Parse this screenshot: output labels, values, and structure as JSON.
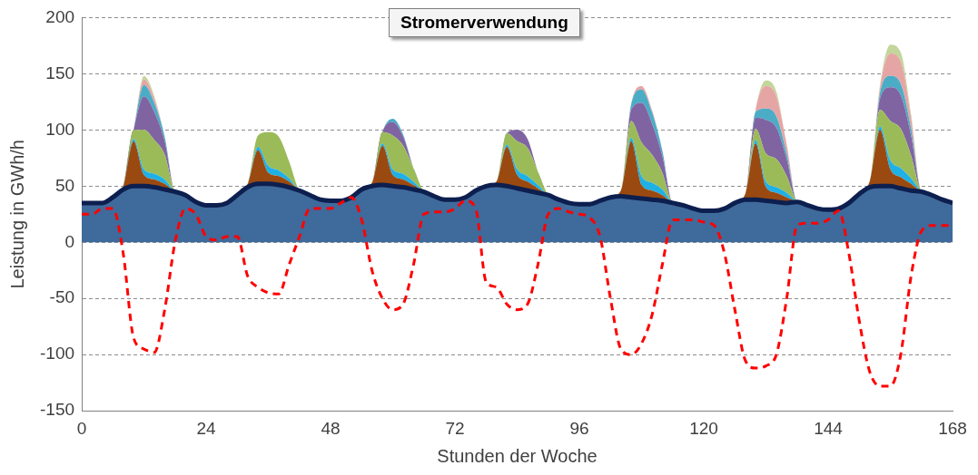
{
  "chart_data": {
    "type": "area",
    "title": "Stromerverwendung",
    "x_label": "Stunden der Woche",
    "y_label": "Leistung in GWh/h",
    "xlim": [
      0,
      168
    ],
    "xticks": [
      0,
      24,
      48,
      72,
      96,
      120,
      144,
      168
    ],
    "ylim": [
      -150,
      200
    ],
    "yticks": [
      -150,
      -100,
      -50,
      0,
      50,
      100,
      150,
      200
    ],
    "grid": true,
    "stacked": true,
    "x": [
      0,
      2,
      4,
      6,
      8,
      10,
      12,
      14,
      16,
      18,
      20,
      22,
      24,
      26,
      28,
      30,
      32,
      34,
      36,
      38,
      40,
      42,
      44,
      46,
      48,
      50,
      52,
      54,
      56,
      58,
      60,
      62,
      64,
      66,
      68,
      70,
      72,
      74,
      76,
      78,
      80,
      82,
      84,
      86,
      88,
      90,
      92,
      94,
      96,
      98,
      100,
      102,
      104,
      106,
      108,
      110,
      112,
      114,
      116,
      118,
      120,
      122,
      124,
      126,
      128,
      130,
      132,
      134,
      136,
      138,
      140,
      142,
      144,
      146,
      148,
      150,
      152,
      154,
      156,
      158,
      160,
      162,
      164,
      166,
      168
    ],
    "series": [
      {
        "color": "#3f6a9c",
        "values": [
          35,
          35,
          35,
          40,
          47,
          50,
          50,
          49,
          47,
          45,
          42,
          36,
          33,
          33,
          35,
          42,
          49,
          52,
          52,
          51,
          49,
          46,
          42,
          38,
          37,
          37,
          40,
          47,
          50,
          51,
          50,
          49,
          47,
          45,
          41,
          38,
          38,
          40,
          46,
          50,
          51,
          50,
          48,
          46,
          44,
          42,
          38,
          35,
          34,
          34,
          37,
          40,
          41,
          40,
          39,
          38,
          37,
          35,
          33,
          30,
          28,
          28,
          30,
          35,
          38,
          38,
          37,
          36,
          35,
          36,
          33,
          30,
          29,
          30,
          35,
          43,
          49,
          50,
          50,
          48,
          46,
          45,
          42,
          38,
          35
        ]
      },
      {
        "color": "#9a4a10",
        "values": [
          0,
          0,
          0,
          0,
          3,
          40,
          10,
          7,
          5,
          0,
          0,
          0,
          0,
          0,
          0,
          0,
          3,
          30,
          10,
          8,
          5,
          0,
          0,
          0,
          0,
          0,
          0,
          0,
          3,
          35,
          10,
          7,
          4,
          0,
          0,
          0,
          0,
          0,
          0,
          0,
          3,
          35,
          12,
          8,
          4,
          0,
          0,
          0,
          0,
          0,
          0,
          0,
          5,
          50,
          12,
          8,
          5,
          0,
          0,
          0,
          0,
          0,
          0,
          0,
          5,
          50,
          12,
          8,
          5,
          0,
          0,
          0,
          0,
          0,
          0,
          0,
          5,
          50,
          15,
          10,
          6,
          0,
          0,
          0,
          0
        ]
      },
      {
        "color": "#1fb0e6",
        "values": [
          0,
          0,
          0,
          0,
          0,
          2,
          5,
          5,
          4,
          0,
          0,
          0,
          0,
          0,
          0,
          0,
          0,
          3,
          6,
          5,
          3,
          0,
          0,
          0,
          0,
          0,
          0,
          0,
          0,
          2,
          5,
          5,
          3,
          0,
          0,
          0,
          0,
          0,
          0,
          0,
          0,
          2,
          5,
          5,
          3,
          0,
          0,
          0,
          0,
          0,
          0,
          0,
          0,
          3,
          8,
          7,
          5,
          0,
          0,
          0,
          0,
          0,
          0,
          0,
          0,
          3,
          5,
          5,
          4,
          0,
          0,
          0,
          0,
          0,
          0,
          0,
          0,
          3,
          8,
          8,
          5,
          0,
          0,
          0,
          0
        ]
      },
      {
        "color": "#9bbb59",
        "values": [
          0,
          0,
          0,
          0,
          0,
          8,
          35,
          30,
          22,
          0,
          0,
          0,
          0,
          0,
          0,
          0,
          0,
          10,
          30,
          30,
          15,
          0,
          0,
          0,
          0,
          0,
          0,
          0,
          0,
          10,
          30,
          25,
          12,
          0,
          0,
          0,
          0,
          0,
          0,
          0,
          0,
          10,
          25,
          25,
          12,
          0,
          0,
          0,
          0,
          0,
          0,
          0,
          0,
          15,
          30,
          25,
          15,
          0,
          0,
          0,
          0,
          0,
          0,
          0,
          0,
          10,
          25,
          25,
          15,
          0,
          0,
          0,
          0,
          0,
          0,
          0,
          0,
          15,
          35,
          35,
          20,
          0,
          0,
          0,
          0
        ]
      },
      {
        "color": "#8064a2",
        "values": [
          0,
          0,
          0,
          0,
          0,
          0,
          30,
          25,
          12,
          0,
          0,
          0,
          0,
          0,
          0,
          0,
          0,
          0,
          0,
          0,
          0,
          0,
          0,
          0,
          0,
          0,
          0,
          0,
          0,
          0,
          12,
          8,
          0,
          0,
          0,
          0,
          0,
          0,
          0,
          0,
          0,
          0,
          10,
          8,
          0,
          0,
          0,
          0,
          0,
          0,
          0,
          0,
          0,
          10,
          35,
          28,
          15,
          0,
          0,
          0,
          0,
          0,
          0,
          0,
          0,
          10,
          30,
          28,
          15,
          0,
          0,
          0,
          0,
          0,
          0,
          0,
          0,
          10,
          30,
          30,
          18,
          0,
          0,
          0,
          0
        ]
      },
      {
        "color": "#4bacc6",
        "values": [
          0,
          0,
          0,
          0,
          0,
          0,
          10,
          8,
          4,
          0,
          0,
          0,
          0,
          0,
          0,
          0,
          0,
          0,
          0,
          0,
          0,
          0,
          0,
          0,
          0,
          0,
          0,
          0,
          0,
          0,
          3,
          2,
          0,
          0,
          0,
          0,
          0,
          0,
          0,
          0,
          0,
          0,
          0,
          0,
          0,
          0,
          0,
          0,
          0,
          0,
          0,
          0,
          0,
          5,
          12,
          10,
          5,
          0,
          0,
          0,
          0,
          0,
          0,
          0,
          0,
          5,
          10,
          10,
          5,
          0,
          0,
          0,
          0,
          0,
          0,
          0,
          0,
          5,
          10,
          10,
          6,
          0,
          0,
          0,
          0
        ]
      },
      {
        "color": "#e6a5a5",
        "values": [
          0,
          0,
          0,
          0,
          0,
          0,
          5,
          4,
          0,
          0,
          0,
          0,
          0,
          0,
          0,
          0,
          0,
          0,
          0,
          0,
          0,
          0,
          0,
          0,
          0,
          0,
          0,
          0,
          0,
          0,
          0,
          0,
          0,
          0,
          0,
          0,
          0,
          0,
          0,
          0,
          0,
          0,
          0,
          0,
          0,
          0,
          0,
          0,
          0,
          0,
          0,
          0,
          0,
          0,
          3,
          2,
          0,
          0,
          0,
          0,
          0,
          0,
          0,
          0,
          0,
          2,
          20,
          18,
          8,
          0,
          0,
          0,
          0,
          0,
          0,
          0,
          0,
          5,
          20,
          20,
          10,
          0,
          0,
          0,
          0
        ]
      },
      {
        "color": "#c3d69b",
        "values": [
          0,
          0,
          0,
          0,
          0,
          0,
          3,
          2,
          0,
          0,
          0,
          0,
          0,
          0,
          0,
          0,
          0,
          0,
          0,
          0,
          0,
          0,
          0,
          0,
          0,
          0,
          0,
          0,
          0,
          0,
          0,
          0,
          0,
          0,
          0,
          0,
          0,
          0,
          0,
          0,
          0,
          0,
          0,
          0,
          0,
          0,
          0,
          0,
          0,
          0,
          0,
          0,
          0,
          0,
          0,
          0,
          0,
          0,
          0,
          0,
          0,
          0,
          0,
          0,
          0,
          0,
          5,
          4,
          0,
          0,
          0,
          0,
          0,
          0,
          0,
          0,
          0,
          2,
          8,
          8,
          3,
          0,
          0,
          0,
          0
        ]
      },
      {
        "color": "#ff0000",
        "type": "line",
        "line_style": "dashed",
        "values": [
          25,
          25,
          30,
          30,
          -10,
          -85,
          -95,
          -98,
          -60,
          0,
          30,
          25,
          5,
          2,
          5,
          5,
          -30,
          -40,
          -45,
          -46,
          -20,
          5,
          30,
          30,
          30,
          35,
          40,
          20,
          -25,
          -50,
          -60,
          -55,
          -20,
          25,
          27,
          27,
          30,
          37,
          30,
          -35,
          -40,
          -55,
          -60,
          -55,
          -20,
          25,
          30,
          27,
          25,
          22,
          5,
          -50,
          -95,
          -100,
          -90,
          -65,
          -20,
          20,
          20,
          20,
          18,
          15,
          -10,
          -60,
          -105,
          -112,
          -110,
          -100,
          -50,
          15,
          17,
          17,
          20,
          28,
          -10,
          -70,
          -115,
          -128,
          -128,
          -100,
          -30,
          10,
          15,
          15,
          15
        ]
      }
    ]
  }
}
